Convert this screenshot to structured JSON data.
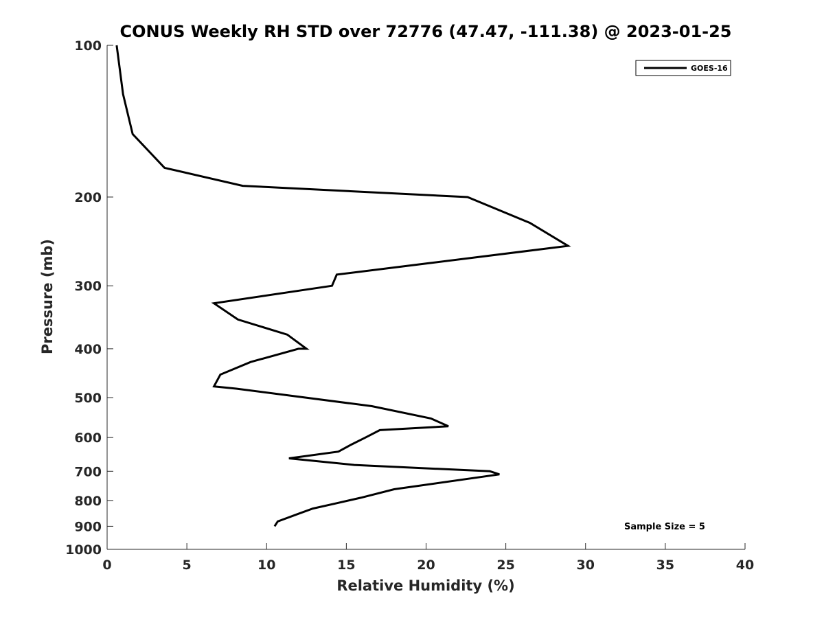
{
  "chart_data": {
    "type": "line",
    "title": "CONUS Weekly RH STD over 72776 (47.47, -111.38) @ 2023-01-25",
    "xlabel": "Relative Humidity (%)",
    "ylabel": "Pressure (mb)",
    "xlim": [
      0,
      40
    ],
    "ylim": [
      100,
      1000
    ],
    "y_scale": "log",
    "y_direction": "reversed",
    "grid": false,
    "x_ticks": [
      "0",
      "5",
      "10",
      "15",
      "20",
      "25",
      "30",
      "35",
      "40"
    ],
    "y_ticks": [
      "100",
      "200",
      "300",
      "400",
      "500",
      "600",
      "700",
      "800",
      "900",
      "1000"
    ],
    "legend": {
      "position": "top-right",
      "entries": [
        "GOES-16"
      ]
    },
    "annotation": "Sample Size = 5",
    "series": [
      {
        "name": "GOES-16",
        "color": "#000000",
        "points": [
          [
            0.6,
            100
          ],
          [
            1.0,
            125
          ],
          [
            1.6,
            150
          ],
          [
            3.6,
            175
          ],
          [
            8.5,
            190
          ],
          [
            22.6,
            200
          ],
          [
            26.5,
            225
          ],
          [
            28.9,
            250
          ],
          [
            14.4,
            285
          ],
          [
            14.1,
            300
          ],
          [
            6.7,
            325
          ],
          [
            8.2,
            350
          ],
          [
            11.3,
            375
          ],
          [
            12.5,
            400
          ],
          [
            12.0,
            400
          ],
          [
            9.0,
            425
          ],
          [
            7.1,
            450
          ],
          [
            6.7,
            475
          ],
          [
            8.1,
            480
          ],
          [
            16.6,
            520
          ],
          [
            20.3,
            550
          ],
          [
            21.4,
            570
          ],
          [
            17.1,
            580
          ],
          [
            16.2,
            600
          ],
          [
            15.3,
            620
          ],
          [
            14.5,
            640
          ],
          [
            11.4,
            660
          ],
          [
            15.5,
            680
          ],
          [
            24.0,
            700
          ],
          [
            24.6,
            710
          ],
          [
            18.0,
            760
          ],
          [
            15.9,
            790
          ],
          [
            14.4,
            810
          ],
          [
            12.9,
            830
          ],
          [
            12.0,
            850
          ],
          [
            10.7,
            880
          ],
          [
            10.5,
            900
          ]
        ]
      }
    ]
  }
}
